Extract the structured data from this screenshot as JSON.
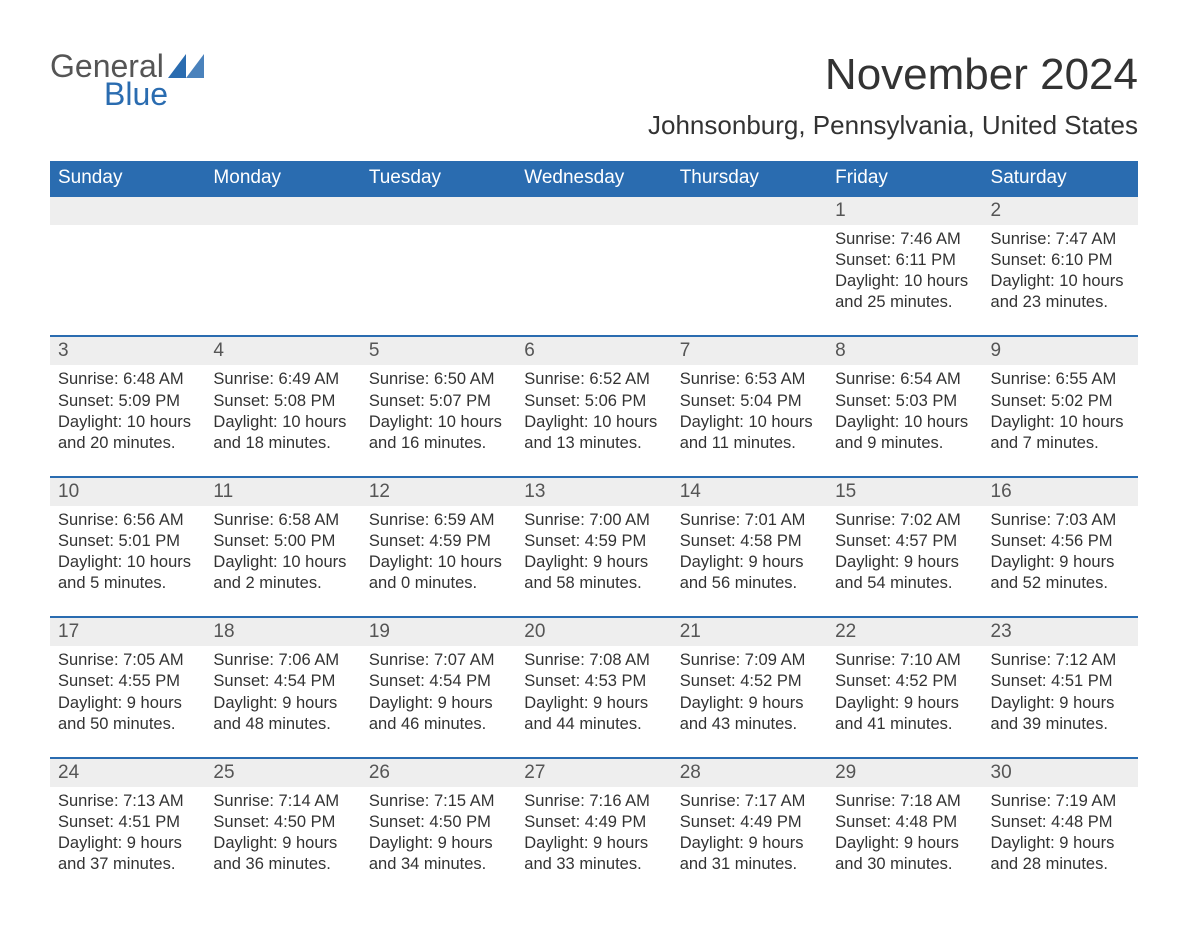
{
  "brand": {
    "text1": "General",
    "text2": "Blue",
    "color_primary": "#2a6cb0",
    "color_text": "#555555"
  },
  "title": "November 2024",
  "location": "Johnsonburg, Pennsylvania, United States",
  "colors": {
    "header_bg": "#2a6cb0",
    "header_text": "#ffffff",
    "row_border": "#2a6cb0",
    "daynum_bg": "#eeeeee",
    "daynum_text": "#555555",
    "body_text": "#333333",
    "page_bg": "#ffffff"
  },
  "typography": {
    "month_title_fontsize": 44,
    "location_fontsize": 26,
    "dow_fontsize": 19,
    "daynum_fontsize": 19,
    "details_fontsize": 16.5,
    "font_family": "Arial"
  },
  "daysOfWeek": [
    "Sunday",
    "Monday",
    "Tuesday",
    "Wednesday",
    "Thursday",
    "Friday",
    "Saturday"
  ],
  "labels": {
    "sunrise": "Sunrise:",
    "sunset": "Sunset:",
    "daylight": "Daylight:"
  },
  "weeks": [
    [
      {
        "empty": true
      },
      {
        "empty": true
      },
      {
        "empty": true
      },
      {
        "empty": true
      },
      {
        "empty": true
      },
      {
        "day": "1",
        "sunrise": "7:46 AM",
        "sunset": "6:11 PM",
        "daylight": "10 hours and 25 minutes."
      },
      {
        "day": "2",
        "sunrise": "7:47 AM",
        "sunset": "6:10 PM",
        "daylight": "10 hours and 23 minutes."
      }
    ],
    [
      {
        "day": "3",
        "sunrise": "6:48 AM",
        "sunset": "5:09 PM",
        "daylight": "10 hours and 20 minutes."
      },
      {
        "day": "4",
        "sunrise": "6:49 AM",
        "sunset": "5:08 PM",
        "daylight": "10 hours and 18 minutes."
      },
      {
        "day": "5",
        "sunrise": "6:50 AM",
        "sunset": "5:07 PM",
        "daylight": "10 hours and 16 minutes."
      },
      {
        "day": "6",
        "sunrise": "6:52 AM",
        "sunset": "5:06 PM",
        "daylight": "10 hours and 13 minutes."
      },
      {
        "day": "7",
        "sunrise": "6:53 AM",
        "sunset": "5:04 PM",
        "daylight": "10 hours and 11 minutes."
      },
      {
        "day": "8",
        "sunrise": "6:54 AM",
        "sunset": "5:03 PM",
        "daylight": "10 hours and 9 minutes."
      },
      {
        "day": "9",
        "sunrise": "6:55 AM",
        "sunset": "5:02 PM",
        "daylight": "10 hours and 7 minutes."
      }
    ],
    [
      {
        "day": "10",
        "sunrise": "6:56 AM",
        "sunset": "5:01 PM",
        "daylight": "10 hours and 5 minutes."
      },
      {
        "day": "11",
        "sunrise": "6:58 AM",
        "sunset": "5:00 PM",
        "daylight": "10 hours and 2 minutes."
      },
      {
        "day": "12",
        "sunrise": "6:59 AM",
        "sunset": "4:59 PM",
        "daylight": "10 hours and 0 minutes."
      },
      {
        "day": "13",
        "sunrise": "7:00 AM",
        "sunset": "4:59 PM",
        "daylight": "9 hours and 58 minutes."
      },
      {
        "day": "14",
        "sunrise": "7:01 AM",
        "sunset": "4:58 PM",
        "daylight": "9 hours and 56 minutes."
      },
      {
        "day": "15",
        "sunrise": "7:02 AM",
        "sunset": "4:57 PM",
        "daylight": "9 hours and 54 minutes."
      },
      {
        "day": "16",
        "sunrise": "7:03 AM",
        "sunset": "4:56 PM",
        "daylight": "9 hours and 52 minutes."
      }
    ],
    [
      {
        "day": "17",
        "sunrise": "7:05 AM",
        "sunset": "4:55 PM",
        "daylight": "9 hours and 50 minutes."
      },
      {
        "day": "18",
        "sunrise": "7:06 AM",
        "sunset": "4:54 PM",
        "daylight": "9 hours and 48 minutes."
      },
      {
        "day": "19",
        "sunrise": "7:07 AM",
        "sunset": "4:54 PM",
        "daylight": "9 hours and 46 minutes."
      },
      {
        "day": "20",
        "sunrise": "7:08 AM",
        "sunset": "4:53 PM",
        "daylight": "9 hours and 44 minutes."
      },
      {
        "day": "21",
        "sunrise": "7:09 AM",
        "sunset": "4:52 PM",
        "daylight": "9 hours and 43 minutes."
      },
      {
        "day": "22",
        "sunrise": "7:10 AM",
        "sunset": "4:52 PM",
        "daylight": "9 hours and 41 minutes."
      },
      {
        "day": "23",
        "sunrise": "7:12 AM",
        "sunset": "4:51 PM",
        "daylight": "9 hours and 39 minutes."
      }
    ],
    [
      {
        "day": "24",
        "sunrise": "7:13 AM",
        "sunset": "4:51 PM",
        "daylight": "9 hours and 37 minutes."
      },
      {
        "day": "25",
        "sunrise": "7:14 AM",
        "sunset": "4:50 PM",
        "daylight": "9 hours and 36 minutes."
      },
      {
        "day": "26",
        "sunrise": "7:15 AM",
        "sunset": "4:50 PM",
        "daylight": "9 hours and 34 minutes."
      },
      {
        "day": "27",
        "sunrise": "7:16 AM",
        "sunset": "4:49 PM",
        "daylight": "9 hours and 33 minutes."
      },
      {
        "day": "28",
        "sunrise": "7:17 AM",
        "sunset": "4:49 PM",
        "daylight": "9 hours and 31 minutes."
      },
      {
        "day": "29",
        "sunrise": "7:18 AM",
        "sunset": "4:48 PM",
        "daylight": "9 hours and 30 minutes."
      },
      {
        "day": "30",
        "sunrise": "7:19 AM",
        "sunset": "4:48 PM",
        "daylight": "9 hours and 28 minutes."
      }
    ]
  ]
}
